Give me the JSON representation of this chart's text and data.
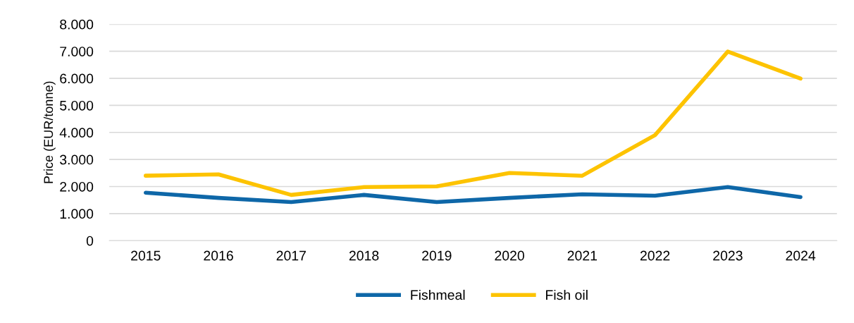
{
  "chart_data": {
    "type": "line",
    "ylabel": "Price (EUR/tonne)",
    "categories": [
      "2015",
      "2016",
      "2017",
      "2018",
      "2019",
      "2020",
      "2021",
      "2022",
      "2023",
      "2024"
    ],
    "series": [
      {
        "name": "Fishmeal",
        "color": "#0e67a8",
        "values": [
          1770,
          1580,
          1425,
          1690,
          1425,
          1580,
          1715,
          1660,
          1980,
          1610
        ]
      },
      {
        "name": "Fish oil",
        "color": "#fdc300",
        "values": [
          2400,
          2450,
          1690,
          1980,
          2005,
          2500,
          2400,
          3900,
          6990,
          5990
        ]
      }
    ],
    "ylim": [
      0,
      8000
    ],
    "yticks": [
      {
        "value": 0,
        "label": "0"
      },
      {
        "value": 1000,
        "label": "1.000"
      },
      {
        "value": 2000,
        "label": "2.000"
      },
      {
        "value": 3000,
        "label": "3.000"
      },
      {
        "value": 4000,
        "label": "4.000"
      },
      {
        "value": 5000,
        "label": "5.000"
      },
      {
        "value": 6000,
        "label": "6.000"
      },
      {
        "value": 7000,
        "label": "7.000"
      },
      {
        "value": 8000,
        "label": "8.000"
      }
    ],
    "grid": "y",
    "legend": "bottom",
    "marker": "none",
    "line_style": "solid"
  }
}
